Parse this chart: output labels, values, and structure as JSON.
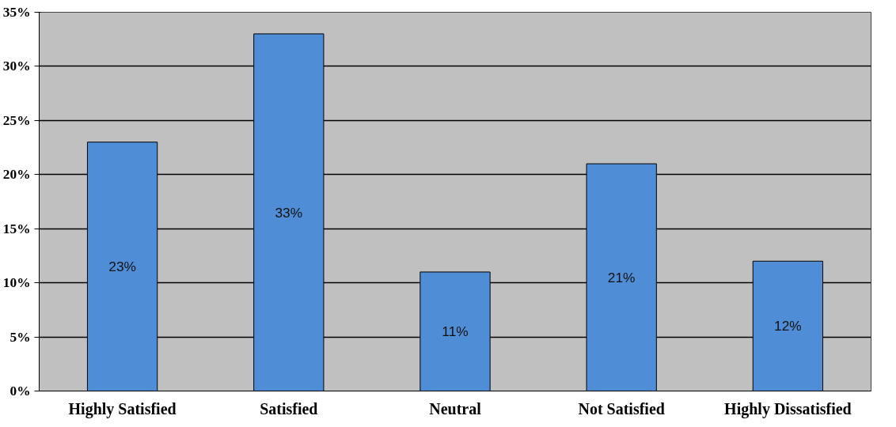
{
  "chart_data": {
    "type": "bar",
    "categories": [
      "Highly Satisfied",
      "Satisfied",
      "Neutral",
      "Not Satisfied",
      "Highly Dissatisfied"
    ],
    "values": [
      23,
      33,
      11,
      21,
      12
    ],
    "value_labels": [
      "23%",
      "33%",
      "11%",
      "21%",
      "12%"
    ],
    "color": "#4f8ed6",
    "ylim": [
      0,
      35
    ],
    "yticks": [
      {
        "value": 0,
        "label": "0%"
      },
      {
        "value": 5,
        "label": "5%"
      },
      {
        "value": 10,
        "label": "10%"
      },
      {
        "value": 15,
        "label": "15%"
      },
      {
        "value": 20,
        "label": "20%"
      },
      {
        "value": 25,
        "label": "25%"
      },
      {
        "value": 30,
        "label": "30%"
      },
      {
        "value": 35,
        "label": "35%"
      }
    ],
    "grid": "y"
  }
}
